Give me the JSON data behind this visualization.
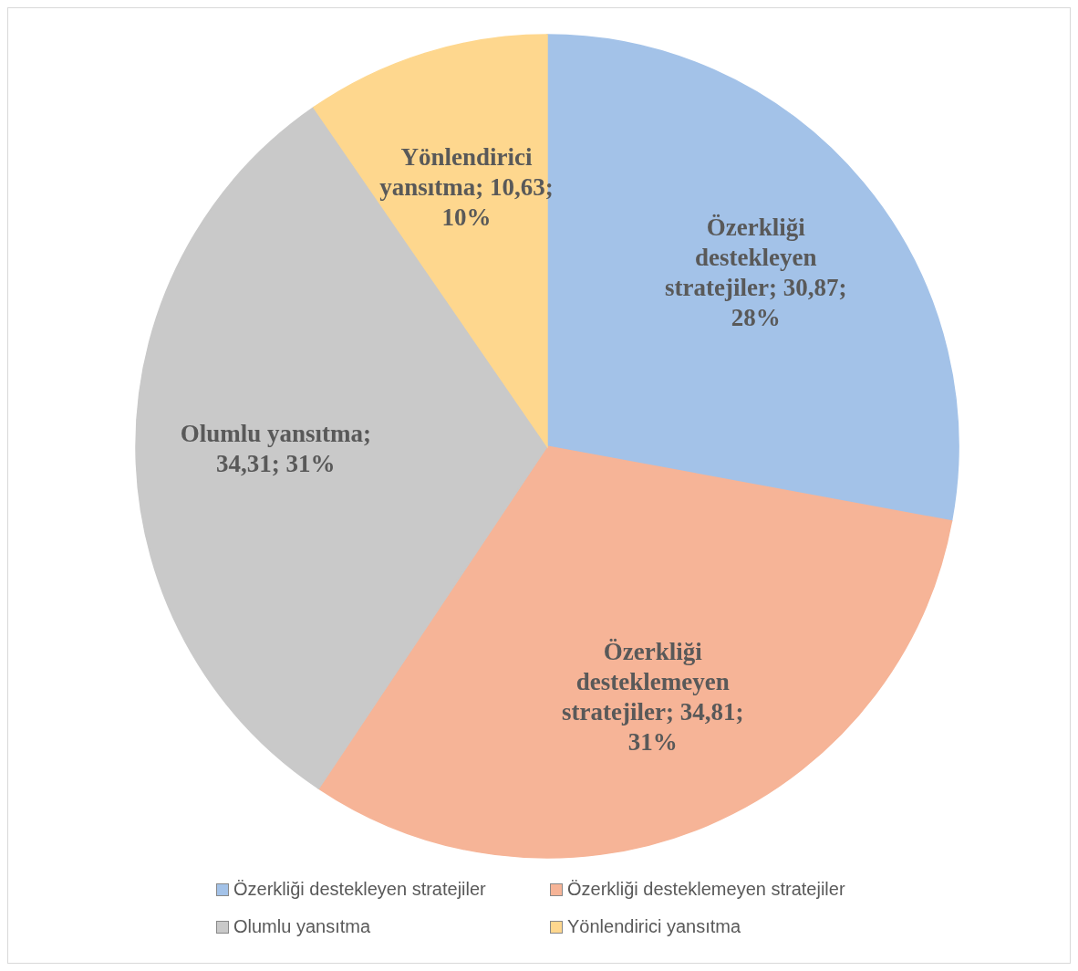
{
  "chart_data": {
    "type": "pie",
    "categories": [
      "Özerkliği destekleyen stratejiler",
      "Özerkliği desteklemeyen stratejiler",
      "Olumlu yansıtma",
      "Yönlendirici yansıtma"
    ],
    "values": [
      30.87,
      34.81,
      34.31,
      10.63
    ],
    "colors": [
      "#a3c2e8",
      "#f6b497",
      "#c9c9c9",
      "#fed78e"
    ],
    "value_labels": [
      "Özerkliği destekleyen stratejiler; 30,87; 28%",
      "Özerkliği desteklemeyen stratejiler; 34,81; 31%",
      "Olumlu yansıtma; 34,31; 31%",
      "Yönlendirici yansıtma; 10,63; 10%"
    ],
    "legend": "bottom"
  }
}
